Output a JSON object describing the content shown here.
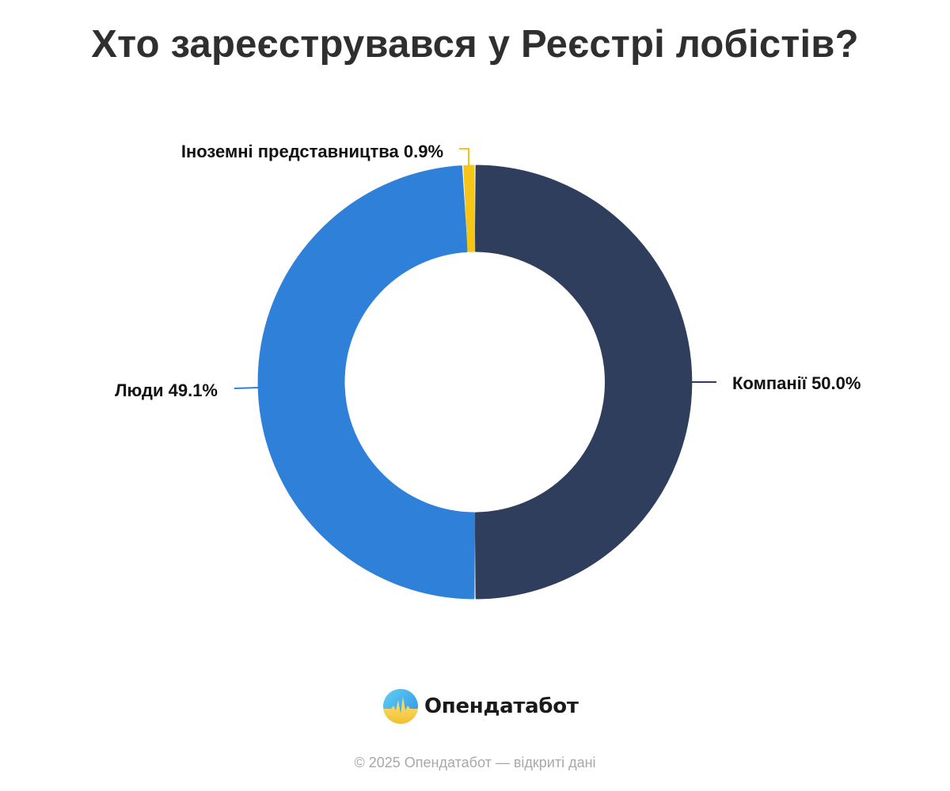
{
  "title": "Хто зареєструвався у Реєстрі лобістів?",
  "chart_data": {
    "type": "pie",
    "title": "Хто зареєструвався у Реєстрі лобістів?",
    "donut": true,
    "slices": [
      {
        "label": "Компанії",
        "value": 50.0,
        "display": "Компанії 50.0%",
        "color": "#2f3e5c"
      },
      {
        "label": "Люди",
        "value": 49.1,
        "display": "Люди 49.1%",
        "color": "#2e80d9"
      },
      {
        "label": "Іноземні представництва",
        "value": 0.9,
        "display": "Іноземні представництва 0.9%",
        "color": "#f5c518"
      }
    ]
  },
  "brand": {
    "name": "Опендатабот",
    "logo_icon": "opendatabot-logo-icon"
  },
  "footer": "© 2025 Опендатабот — відкриті дані"
}
